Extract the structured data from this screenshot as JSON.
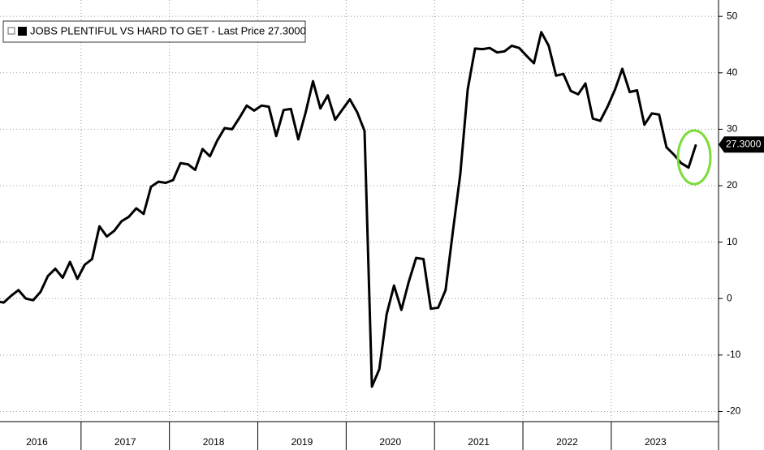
{
  "chart_data": {
    "type": "line",
    "categories": [
      null,
      null,
      null,
      null,
      null,
      null,
      "2016",
      null,
      null,
      null,
      null,
      null,
      null,
      null,
      null,
      null,
      null,
      null,
      "2017",
      null,
      null,
      null,
      null,
      null,
      null,
      null,
      null,
      null,
      null,
      null,
      "2018",
      null,
      null,
      null,
      null,
      null,
      null,
      null,
      null,
      null,
      null,
      null,
      "2019",
      null,
      null,
      null,
      null,
      null,
      null,
      null,
      null,
      null,
      null,
      null,
      "2020",
      null,
      null,
      null,
      null,
      null,
      null,
      null,
      null,
      null,
      null,
      null,
      "2021",
      null,
      null,
      null,
      null,
      null,
      null,
      null,
      null,
      null,
      null,
      null,
      "2022",
      null,
      null,
      null,
      null,
      null,
      null,
      null,
      null,
      null,
      null,
      null,
      "2023",
      null,
      null,
      null,
      null,
      null
    ],
    "series": [
      {
        "name": "JOBS PLENTIFUL VS HARD TO GET - Last Price 27.3000",
        "color": "#000000",
        "values": [
          -0.5,
          -0.7,
          0.5,
          1.5,
          0,
          -0.3,
          1.2,
          4,
          5.3,
          3.7,
          6.5,
          3.5,
          6,
          7,
          12.8,
          11,
          12,
          13.7,
          14.5,
          16,
          15,
          19.8,
          20.7,
          20.5,
          21,
          24,
          23.8,
          22.8,
          26.5,
          25.2,
          28,
          30.2,
          30,
          32,
          34.2,
          33.3,
          34.2,
          34,
          28.8,
          33.4,
          33.6,
          28.2,
          33,
          38.5,
          33.7,
          36,
          31.7,
          33.5,
          35.3,
          33,
          29.7,
          -15.6,
          -12.5,
          -2.8,
          2.3,
          -2,
          3,
          7.2,
          7,
          -1.8,
          -1.6,
          1.5,
          12,
          22,
          37,
          44.3,
          44.2,
          44.4,
          43.6,
          43.8,
          44.8,
          44.4,
          43,
          41.7,
          47.2,
          44.8,
          39.5,
          39.8,
          36.8,
          36.2,
          38.1,
          31.9,
          31.5,
          34,
          37,
          40.7,
          36.6,
          36.9,
          30.8,
          32.8,
          32.6,
          26.8,
          25.5,
          24,
          23.2,
          27.3
        ],
        "value_labels": [
          null,
          null,
          null,
          null,
          null,
          null,
          null,
          null,
          null,
          null,
          null,
          null,
          null,
          null,
          null,
          null,
          null,
          null,
          null,
          null,
          null,
          null,
          null,
          null,
          null,
          null,
          null,
          null,
          null,
          null,
          null,
          null,
          null,
          null,
          null,
          null,
          null,
          null,
          null,
          null,
          null,
          null,
          null,
          null,
          null,
          null,
          null,
          null,
          null,
          null,
          null,
          null,
          null,
          null,
          null,
          null,
          null,
          null,
          null,
          null,
          null,
          null,
          null,
          null,
          null,
          null,
          null,
          null,
          null,
          null,
          null,
          null,
          null,
          null,
          null,
          null,
          null,
          null,
          null,
          null,
          null,
          null,
          null,
          null,
          null,
          null,
          null,
          null,
          null,
          null,
          null,
          null,
          null,
          null,
          null,
          "27.3000"
        ]
      }
    ],
    "ylim": [
      -21.8,
      52.9
    ],
    "yticks": [
      -20,
      -10,
      0,
      10,
      20,
      30,
      40,
      50
    ],
    "grid": true
  }
}
